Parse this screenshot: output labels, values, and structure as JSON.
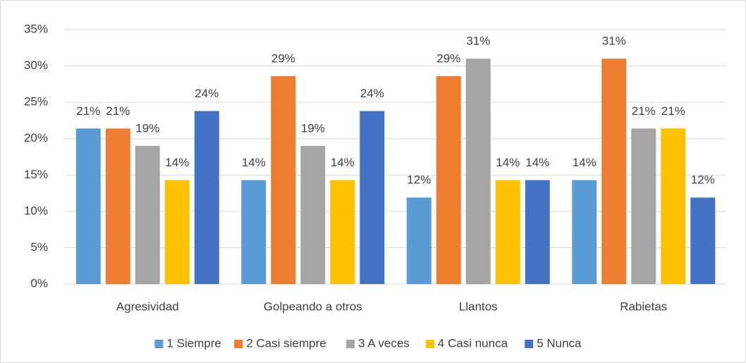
{
  "chart_data": {
    "type": "bar",
    "categories": [
      "Agresividad",
      "Golpeando a otros",
      "Llantos",
      "Rabietas"
    ],
    "series": [
      {
        "name": "1 Siempre",
        "color": "#5b9bd5",
        "values": [
          21.4,
          14.3,
          11.9,
          14.3
        ],
        "value_labels": [
          "21%",
          "14%",
          "12%",
          "14%"
        ]
      },
      {
        "name": "2 Casi siempre",
        "color": "#ed7d31",
        "values": [
          21.4,
          28.6,
          28.6,
          31.0
        ],
        "value_labels": [
          "21%",
          "29%",
          "29%",
          "31%"
        ]
      },
      {
        "name": "3 A veces",
        "color": "#a5a5a5",
        "values": [
          19.0,
          19.0,
          31.0,
          21.4
        ],
        "value_labels": [
          "19%",
          "19%",
          "31%",
          "21%"
        ]
      },
      {
        "name": "4 Casi nunca",
        "color": "#ffc000",
        "values": [
          14.3,
          14.3,
          14.3,
          21.4
        ],
        "value_labels": [
          "14%",
          "14%",
          "14%",
          "21%"
        ]
      },
      {
        "name": "5 Nunca",
        "color": "#4472c4",
        "values": [
          23.8,
          23.8,
          14.3,
          11.9
        ],
        "value_labels": [
          "24%",
          "24%",
          "14%",
          "12%"
        ]
      }
    ],
    "ylim": [
      0,
      35
    ],
    "yticks": [
      {
        "value": 0,
        "label": "0%"
      },
      {
        "value": 5,
        "label": "5%"
      },
      {
        "value": 10,
        "label": "10%"
      },
      {
        "value": 15,
        "label": "15%"
      },
      {
        "value": 20,
        "label": "20%"
      },
      {
        "value": 25,
        "label": "25%"
      },
      {
        "value": 30,
        "label": "30%"
      },
      {
        "value": 35,
        "label": "35%"
      }
    ],
    "grid": true,
    "legend": "bottom"
  }
}
